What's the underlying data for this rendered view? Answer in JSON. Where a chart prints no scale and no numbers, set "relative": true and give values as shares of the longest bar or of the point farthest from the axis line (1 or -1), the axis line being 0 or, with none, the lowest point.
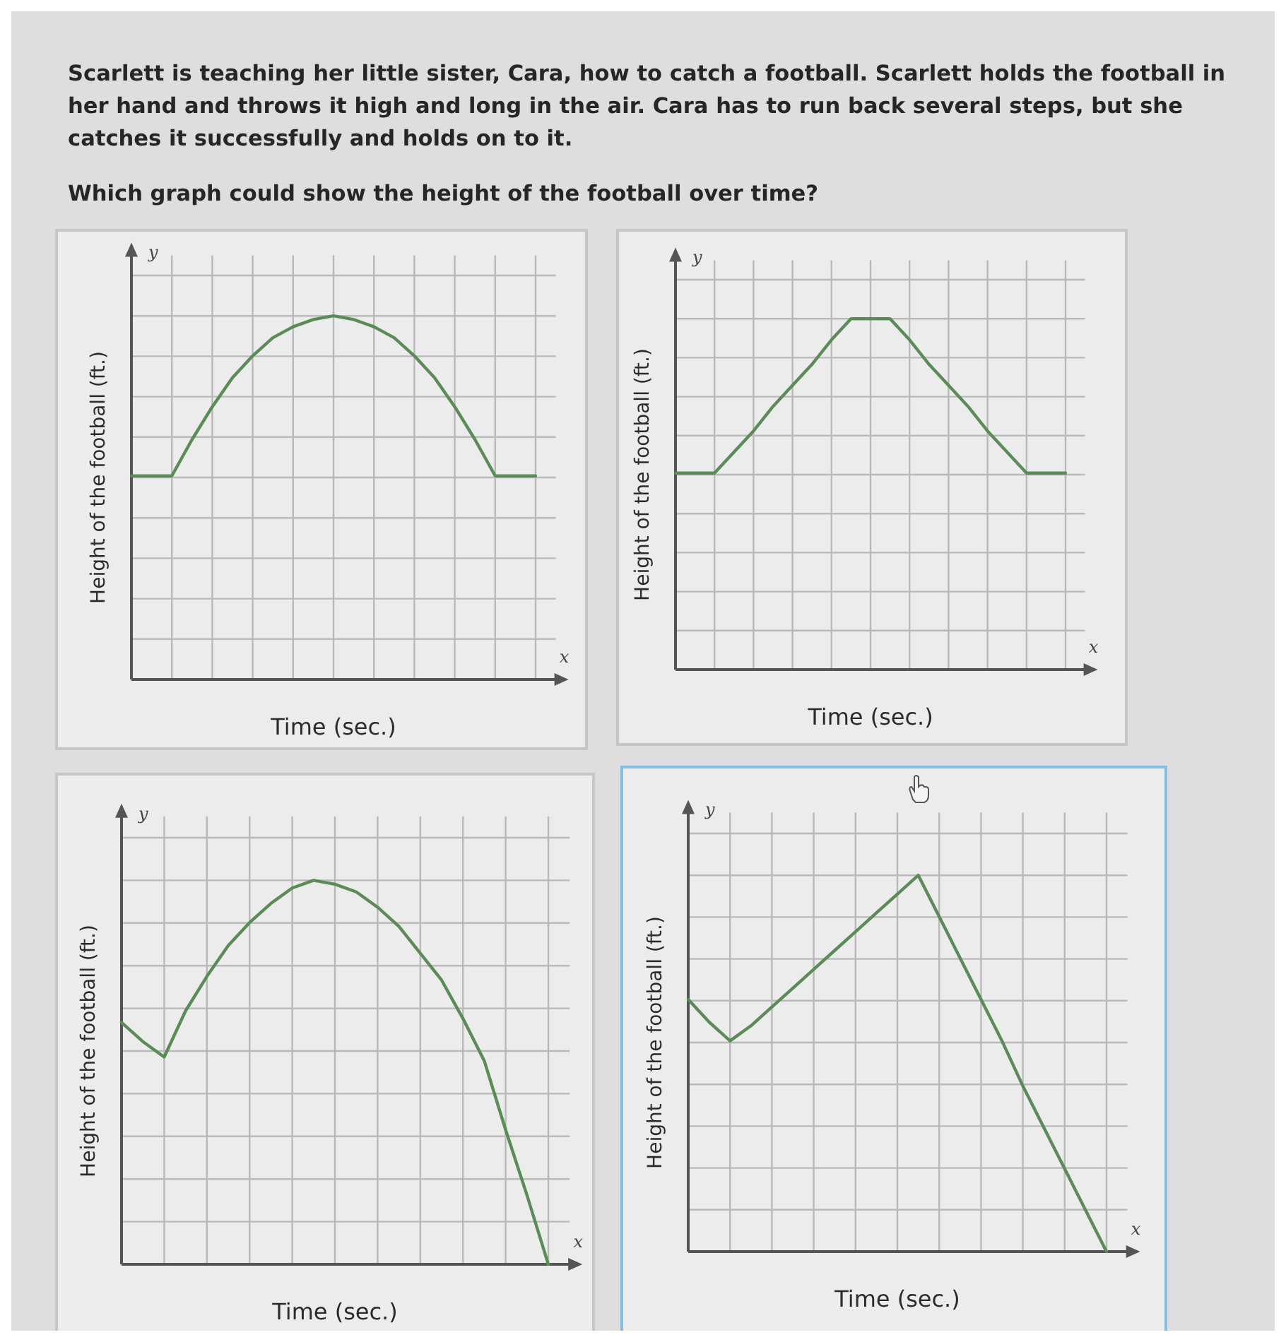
{
  "chart_data": [
    {
      "type": "line",
      "title": "Scarlett is teaching her little sister, Cara, how to catch a football. Scarlett holds the football in her hand and throws it high and long in the air. Cara has to run back several steps, but she catches it successfully and holds on to it.",
      "subtitle": "Which graph could show the height of the football over time?",
      "xlabel": "Time (sec.)",
      "ylabel": "Height of the football (ft.)",
      "annotations": [
        "y",
        "x"
      ],
      "categories": [
        null,
        null,
        null,
        null,
        null,
        null,
        null,
        null,
        null,
        null,
        null,
        null,
        null,
        null,
        null,
        null,
        null,
        null,
        null,
        null,
        null
      ],
      "relative": true,
      "grid": true,
      "series": [
        {
          "color": "#5b8c57",
          "values": [
            0.56,
            0.56,
            0.56,
            0.66,
            0.75,
            0.83,
            0.89,
            0.94,
            0.97,
            0.99,
            1,
            0.99,
            0.97,
            0.94,
            0.89,
            0.83,
            0.75,
            0.66,
            0.56,
            0.56,
            0.56
          ]
        }
      ]
    },
    {
      "type": "line",
      "xlabel": "Time (sec.)",
      "ylabel": "Height of the football (ft.)",
      "annotations": [
        "y",
        "x"
      ],
      "categories": [
        null,
        null,
        null,
        null,
        null,
        null,
        null,
        null,
        null,
        null,
        null,
        null,
        null,
        null,
        null,
        null,
        null,
        null,
        null,
        null,
        null
      ],
      "relative": true,
      "grid": true,
      "series": [
        {
          "color": "#5b8c57",
          "values": [
            0.56,
            0.56,
            0.56,
            0.62,
            0.68,
            0.75,
            0.81,
            0.87,
            0.94,
            1,
            1,
            1,
            0.94,
            0.87,
            0.81,
            0.75,
            0.68,
            0.62,
            0.56,
            0.56,
            0.56
          ]
        }
      ]
    },
    {
      "type": "line",
      "xlabel": "Time (sec.)",
      "ylabel": "Height of the football (ft.)",
      "annotations": [
        "y",
        "x"
      ],
      "categories": [
        null,
        null,
        null,
        null,
        null,
        null,
        null,
        null,
        null,
        null,
        null,
        null,
        null,
        null,
        null,
        null,
        null,
        null,
        null,
        null,
        null
      ],
      "relative": true,
      "grid": true,
      "series": [
        {
          "color": "#5b8c57",
          "values": [
            0.63,
            0.58,
            0.54,
            0.66,
            0.75,
            0.83,
            0.89,
            0.94,
            0.98,
            1,
            0.99,
            0.97,
            0.93,
            0.88,
            0.81,
            0.74,
            0.64,
            0.53,
            0.35,
            0.18,
            0
          ]
        }
      ]
    },
    {
      "type": "line",
      "xlabel": "Time (sec.)",
      "ylabel": "Height of the football (ft.)",
      "annotations": [
        "y",
        "x"
      ],
      "categories": [
        null,
        null,
        null,
        null,
        null,
        null,
        null,
        null,
        null,
        null,
        null,
        null,
        null,
        null,
        null,
        null,
        null,
        null,
        null,
        null,
        null
      ],
      "relative": true,
      "grid": true,
      "series": [
        {
          "color": "#5b8c57",
          "values": [
            0.67,
            0.61,
            0.56,
            0.6,
            0.65,
            0.7,
            0.75,
            0.8,
            0.85,
            0.9,
            0.95,
            1,
            0.89,
            0.78,
            0.67,
            0.56,
            0.44,
            0.33,
            0.22,
            0.11,
            0
          ]
        }
      ]
    }
  ]
}
